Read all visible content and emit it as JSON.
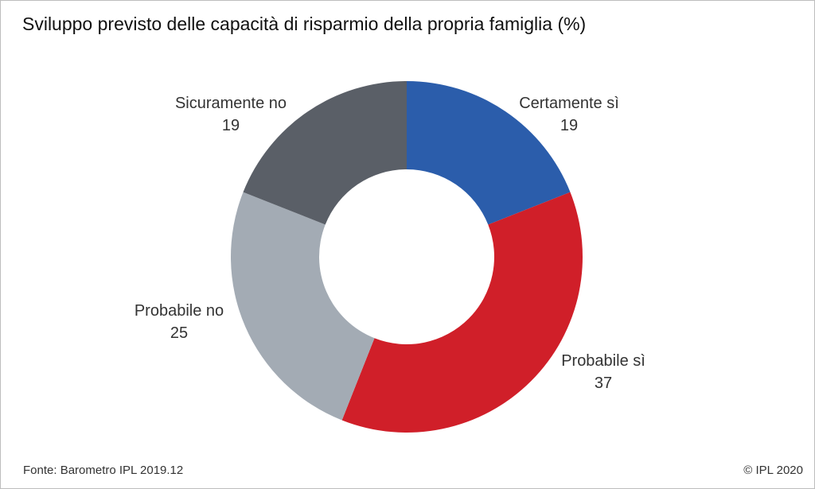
{
  "chart_data": {
    "type": "pie",
    "subtype": "donut",
    "title": "Sviluppo previsto delle capacità di risparmio della propria famiglia (%)",
    "categories": [
      "Certamente sì",
      "Probabile sì",
      "Probabile no",
      "Sicuramente no"
    ],
    "values": [
      19,
      37,
      25,
      19
    ],
    "colors": [
      "#2b5dab",
      "#d01f29",
      "#a3abb4",
      "#5a5f67"
    ],
    "start": "top",
    "direction": "clockwise"
  },
  "footer": {
    "source": "Fonte: Barometro IPL 2019.12",
    "copyright": "© IPL 2020"
  }
}
